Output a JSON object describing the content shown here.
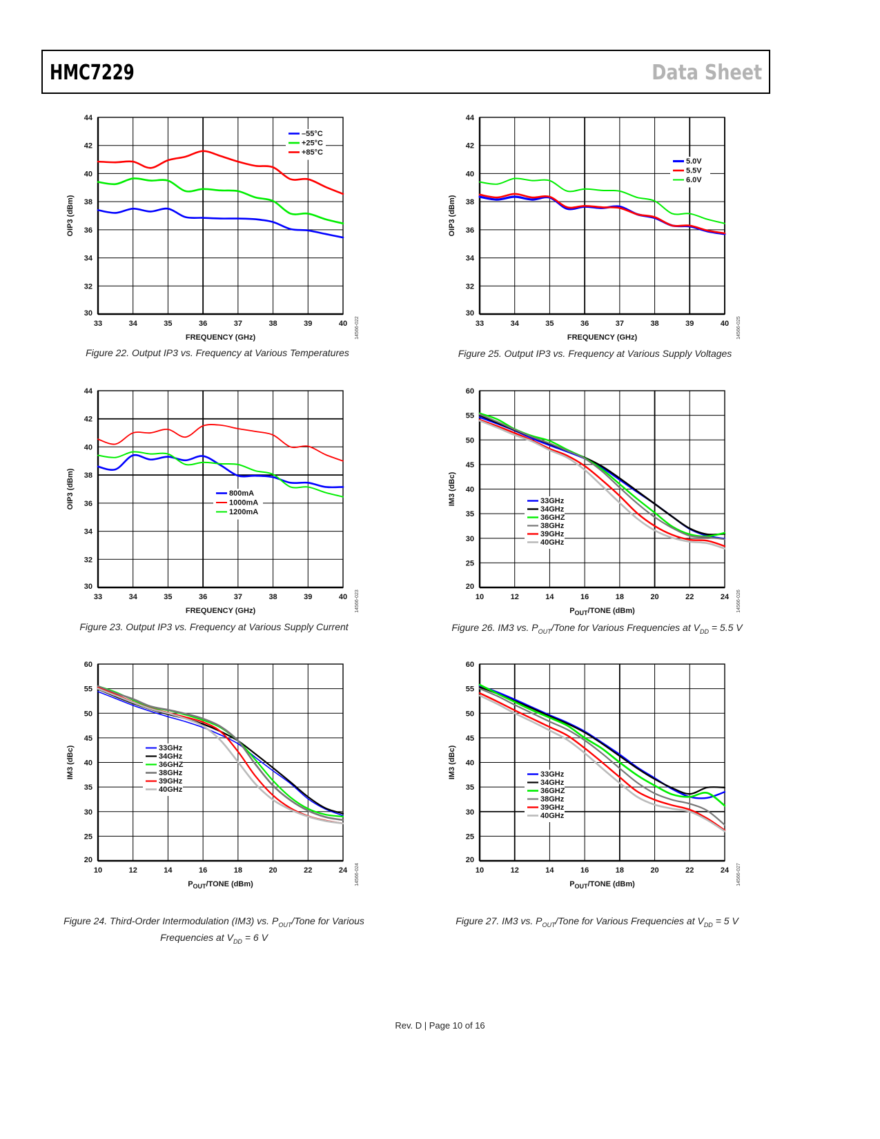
{
  "header": {
    "product": "HMC7229",
    "doc_type": "Data Sheet"
  },
  "footer": {
    "text": "Rev. D | Page 10 of 16"
  },
  "figures": [
    {
      "id": "fig22",
      "caption": "Figure 22. Output IP3 vs. Frequency at Various Temperatures",
      "fig_code": "14566-022"
    },
    {
      "id": "fig25",
      "caption": "Figure 25. Output IP3 vs. Frequency at Various Supply Voltages",
      "fig_code": "14566-025"
    },
    {
      "id": "fig23",
      "caption": "Figure 23. Output IP3 vs. Frequency at Various Supply Current",
      "fig_code": "14566-023"
    },
    {
      "id": "fig26",
      "caption_parts": [
        "Figure 26. IM3 vs. P",
        "OUT",
        "/Tone for Various Frequencies at V",
        "DD",
        " = 5.5 V"
      ],
      "fig_code": "14566-026"
    },
    {
      "id": "fig24",
      "caption_line1_parts": [
        "Figure 24. Third-Order Intermodulation (IM3) vs. P",
        "OUT",
        "/Tone for Various"
      ],
      "caption_line2_parts": [
        "Frequencies at V",
        "DD",
        " = 6 V"
      ],
      "fig_code": "14566-024"
    },
    {
      "id": "fig27",
      "caption_parts": [
        "Figure 27. IM3 vs. P",
        "OUT",
        "/Tone for Various Frequencies at V",
        "DD",
        " = 5 V"
      ],
      "fig_code": "14566-027"
    }
  ],
  "chart_data": [
    {
      "id": "fig22",
      "type": "line",
      "title": "Output IP3 vs. Frequency at Various Temperatures",
      "xlabel": "FREQUENCY (GHz)",
      "ylabel": "OIP3 (dBm)",
      "xlim": [
        33,
        40
      ],
      "ylim": [
        30,
        44
      ],
      "xticks": [
        33,
        34,
        35,
        36,
        37,
        38,
        39,
        40
      ],
      "yticks": [
        30,
        32,
        34,
        36,
        38,
        40,
        42,
        44
      ],
      "grid": true,
      "legend_position": "top-right",
      "x": [
        33,
        33.5,
        34,
        34.5,
        35,
        35.5,
        36,
        36.5,
        37,
        37.5,
        38,
        38.5,
        39,
        39.5,
        40
      ],
      "series": [
        {
          "name": "–55°C",
          "color": "#0000ff",
          "values": [
            37.4,
            37.2,
            37.5,
            37.3,
            37.5,
            36.9,
            36.85,
            36.8,
            36.8,
            36.75,
            36.55,
            36.05,
            35.95,
            35.7,
            35.45
          ]
        },
        {
          "name": "+25°C",
          "color": "#00ee00",
          "values": [
            39.4,
            39.25,
            39.65,
            39.5,
            39.5,
            38.75,
            38.9,
            38.8,
            38.75,
            38.3,
            38.05,
            37.15,
            37.15,
            36.75,
            36.45
          ]
        },
        {
          "name": "+85°C",
          "color": "#ff0000",
          "values": [
            40.85,
            40.8,
            40.85,
            40.4,
            40.95,
            41.2,
            41.6,
            41.25,
            40.85,
            40.55,
            40.45,
            39.6,
            39.6,
            39.05,
            38.55
          ]
        }
      ]
    },
    {
      "id": "fig25",
      "type": "line",
      "title": "Output IP3 vs. Frequency at Various Supply Voltages",
      "xlabel": "FREQUENCY (GHz)",
      "ylabel": "OIP3 (dBm)",
      "xlim": [
        33,
        40
      ],
      "ylim": [
        30,
        44
      ],
      "xticks": [
        33,
        34,
        35,
        36,
        37,
        38,
        39,
        40
      ],
      "yticks": [
        30,
        32,
        34,
        36,
        38,
        40,
        42,
        44
      ],
      "grid": true,
      "legend_position": "top-right",
      "x": [
        33,
        33.5,
        34,
        34.5,
        35,
        35.5,
        36,
        36.5,
        37,
        37.5,
        38,
        38.5,
        39,
        39.5,
        40
      ],
      "series": [
        {
          "name": "5.0V",
          "color": "#0000ff",
          "values": [
            38.35,
            38.15,
            38.35,
            38.15,
            38.3,
            37.5,
            37.65,
            37.55,
            37.65,
            37.1,
            36.85,
            36.3,
            36.25,
            35.9,
            35.7
          ]
        },
        {
          "name": "5.5V",
          "color": "#ff0000",
          "values": [
            38.5,
            38.3,
            38.55,
            38.3,
            38.35,
            37.6,
            37.7,
            37.6,
            37.55,
            37.1,
            36.9,
            36.3,
            36.3,
            35.95,
            35.75
          ]
        },
        {
          "name": "6.0V",
          "color": "#00ee00",
          "values": [
            39.4,
            39.25,
            39.65,
            39.5,
            39.5,
            38.75,
            38.9,
            38.8,
            38.75,
            38.3,
            38.05,
            37.15,
            37.15,
            36.75,
            36.45
          ]
        }
      ]
    },
    {
      "id": "fig23",
      "type": "line",
      "title": "Output IP3 vs. Frequency at Various Supply Current",
      "xlabel": "FREQUENCY (GHz)",
      "ylabel": "OIP3 (dBm)",
      "xlim": [
        33,
        40
      ],
      "ylim": [
        30,
        44
      ],
      "xticks": [
        33,
        34,
        35,
        36,
        37,
        38,
        39,
        40
      ],
      "yticks": [
        30,
        32,
        34,
        36,
        38,
        40,
        42,
        44
      ],
      "grid": true,
      "legend_position": "center-right",
      "x": [
        33,
        33.5,
        34,
        34.5,
        35,
        35.5,
        36,
        36.5,
        37,
        37.5,
        38,
        38.5,
        39,
        39.5,
        40
      ],
      "series": [
        {
          "name": "800mA",
          "color": "#0000ff",
          "values": [
            38.6,
            38.4,
            39.4,
            39.1,
            39.3,
            39.05,
            39.35,
            38.7,
            37.95,
            37.95,
            37.85,
            37.45,
            37.45,
            37.15,
            37.15
          ]
        },
        {
          "name": "1000mA",
          "color": "#ff0000",
          "values": [
            40.55,
            40.2,
            41.0,
            41.0,
            41.25,
            40.7,
            41.5,
            41.55,
            41.3,
            41.1,
            40.85,
            40.0,
            40.05,
            39.45,
            39.0
          ]
        },
        {
          "name": "1200mA",
          "color": "#00ee00",
          "values": [
            39.4,
            39.25,
            39.65,
            39.5,
            39.5,
            38.75,
            38.9,
            38.8,
            38.75,
            38.3,
            38.05,
            37.15,
            37.15,
            36.75,
            36.45
          ]
        }
      ]
    },
    {
      "id": "fig26",
      "type": "line",
      "title": "IM3 vs. POUT/Tone for Various Frequencies at VDD = 5.5 V",
      "xlabel_main": "P",
      "xlabel_sub": "OUT",
      "xlabel_rest": "/TONE (dBm)",
      "ylabel": "IM3 (dBc)",
      "xlim": [
        10,
        24
      ],
      "ylim": [
        20,
        60
      ],
      "xticks": [
        10,
        12,
        14,
        16,
        18,
        20,
        22,
        24
      ],
      "yticks": [
        20,
        25,
        30,
        35,
        40,
        45,
        50,
        55,
        60
      ],
      "grid": true,
      "legend_position": "lower-left",
      "x": [
        10,
        11,
        12,
        13,
        14,
        15,
        16,
        17,
        18,
        19,
        20,
        21,
        22,
        23,
        24
      ],
      "series": [
        {
          "name": "33GHz",
          "color": "#0000ff",
          "values": [
            54.6,
            53.3,
            51.9,
            50.3,
            48.9,
            47.6,
            46.2,
            44.3,
            41.9,
            39.4,
            37.0,
            34.4,
            31.9,
            30.5,
            29.9
          ]
        },
        {
          "name": "34GHz",
          "color": "#000000",
          "values": [
            55.0,
            53.5,
            52.0,
            50.6,
            49.2,
            47.8,
            46.4,
            44.6,
            42.2,
            39.6,
            37.0,
            34.4,
            32.0,
            30.8,
            30.9
          ]
        },
        {
          "name": "36GHZ",
          "color": "#00ee00",
          "values": [
            55.4,
            54.2,
            52.2,
            50.8,
            49.8,
            48.0,
            46.3,
            44.0,
            41.0,
            38.0,
            35.2,
            32.4,
            30.8,
            30.4,
            31.1
          ]
        },
        {
          "name": "38GHz",
          "color": "#777777",
          "values": [
            55.2,
            53.7,
            52.1,
            50.6,
            49.3,
            47.8,
            46.2,
            43.6,
            40.3,
            37.1,
            34.3,
            32.1,
            30.5,
            30.2,
            29.8
          ]
        },
        {
          "name": "39GHz",
          "color": "#ff0000",
          "values": [
            54.1,
            52.8,
            51.4,
            49.9,
            48.2,
            46.8,
            44.7,
            41.8,
            38.6,
            35.1,
            32.5,
            30.7,
            29.7,
            29.5,
            28.4
          ]
        },
        {
          "name": "40GHz",
          "color": "#bbbbbb",
          "values": [
            53.9,
            52.5,
            51.0,
            49.7,
            47.9,
            46.4,
            43.9,
            40.6,
            37.2,
            34.0,
            31.6,
            30.1,
            29.3,
            29.0,
            27.9
          ]
        }
      ]
    },
    {
      "id": "fig24",
      "type": "line",
      "title": "Third-Order Intermodulation (IM3) vs. POUT/Tone for Various Frequencies at VDD = 6 V",
      "xlabel_main": "P",
      "xlabel_sub": "OUT",
      "xlabel_rest": "/TONE (dBm)",
      "ylabel": "IM3 (dBc)",
      "xlim": [
        10,
        24
      ],
      "ylim": [
        20,
        60
      ],
      "xticks": [
        10,
        12,
        14,
        16,
        18,
        20,
        22,
        24
      ],
      "yticks": [
        20,
        25,
        30,
        35,
        40,
        45,
        50,
        55,
        60
      ],
      "grid": true,
      "legend_position": "center-left",
      "x": [
        10,
        11,
        12,
        13,
        14,
        15,
        16,
        17,
        18,
        19,
        20,
        21,
        22,
        23,
        24
      ],
      "series": [
        {
          "name": "33GHz",
          "color": "#0000ff",
          "values": [
            54.4,
            53.0,
            51.6,
            50.4,
            49.3,
            48.3,
            47.1,
            45.6,
            43.8,
            41.0,
            38.3,
            35.7,
            32.6,
            30.5,
            29.2
          ]
        },
        {
          "name": "34GHz",
          "color": "#000000",
          "values": [
            54.9,
            53.4,
            52.0,
            50.8,
            49.8,
            48.9,
            47.8,
            46.3,
            44.4,
            41.7,
            38.9,
            36.0,
            33.0,
            30.7,
            29.6
          ]
        },
        {
          "name": "36GHZ",
          "color": "#00ee00",
          "values": [
            55.5,
            54.3,
            52.7,
            51.2,
            50.6,
            49.7,
            48.6,
            47.1,
            44.4,
            40.5,
            36.3,
            32.9,
            30.6,
            29.4,
            29.0
          ]
        },
        {
          "name": "38GHz",
          "color": "#777777",
          "values": [
            55.5,
            54.1,
            52.9,
            51.4,
            50.7,
            49.9,
            48.9,
            47.3,
            44.4,
            39.6,
            35.3,
            32.3,
            30.2,
            28.9,
            28.3
          ]
        },
        {
          "name": "39GHz",
          "color": "#ff0000",
          "values": [
            55.2,
            53.8,
            52.3,
            51.0,
            50.1,
            49.2,
            48.2,
            46.3,
            42.2,
            37.2,
            33.3,
            30.7,
            29.1,
            28.2,
            27.6
          ]
        },
        {
          "name": "40GHz",
          "color": "#bbbbbb",
          "values": [
            55.0,
            53.6,
            52.2,
            50.9,
            50.0,
            48.9,
            47.4,
            44.5,
            40.1,
            35.6,
            32.4,
            30.4,
            29.0,
            28.1,
            27.6
          ]
        }
      ]
    },
    {
      "id": "fig27",
      "type": "line",
      "title": "IM3 vs. POUT/Tone for Various Frequencies at VDD = 5 V",
      "xlabel_main": "P",
      "xlabel_sub": "OUT",
      "xlabel_rest": "/TONE (dBm)",
      "ylabel": "IM3 (dBc)",
      "xlim": [
        10,
        24
      ],
      "ylim": [
        20,
        60
      ],
      "xticks": [
        10,
        12,
        14,
        16,
        18,
        20,
        22,
        24
      ],
      "yticks": [
        20,
        25,
        30,
        35,
        40,
        45,
        50,
        55,
        60
      ],
      "grid": true,
      "legend_position": "lower-left",
      "x": [
        10,
        11,
        12,
        13,
        14,
        15,
        16,
        17,
        18,
        19,
        20,
        21,
        22,
        23,
        24
      ],
      "series": [
        {
          "name": "33GHz",
          "color": "#0000ff",
          "values": [
            55.6,
            54.3,
            52.8,
            51.2,
            49.6,
            48.1,
            46.3,
            44.0,
            41.6,
            39.0,
            36.8,
            34.6,
            33.0,
            32.8,
            34.0
          ]
        },
        {
          "name": "34GHz",
          "color": "#000000",
          "values": [
            55.3,
            54.0,
            52.5,
            51.0,
            49.4,
            47.9,
            46.1,
            43.8,
            41.3,
            38.8,
            36.6,
            34.8,
            33.6,
            34.9,
            34.9
          ]
        },
        {
          "name": "36GHZ",
          "color": "#00ee00",
          "values": [
            55.8,
            54.0,
            52.3,
            50.6,
            49.1,
            47.5,
            45.0,
            42.8,
            40.0,
            37.4,
            35.3,
            33.5,
            33.0,
            33.8,
            31.2
          ]
        },
        {
          "name": "38GHz",
          "color": "#777777",
          "values": [
            55.0,
            53.5,
            51.7,
            50.0,
            48.3,
            46.7,
            44.5,
            41.8,
            38.8,
            35.9,
            33.7,
            32.4,
            31.6,
            30.2,
            27.3
          ]
        },
        {
          "name": "39GHz",
          "color": "#ff0000",
          "values": [
            54.1,
            52.4,
            50.6,
            48.9,
            47.2,
            45.5,
            42.9,
            40.0,
            37.0,
            34.1,
            32.4,
            31.3,
            30.4,
            28.6,
            26.2
          ]
        },
        {
          "name": "40GHz",
          "color": "#bbbbbb",
          "values": [
            53.6,
            51.9,
            50.0,
            48.3,
            46.5,
            44.6,
            41.9,
            38.8,
            35.8,
            33.0,
            31.4,
            30.6,
            30.0,
            28.3,
            26.0
          ]
        }
      ]
    }
  ]
}
